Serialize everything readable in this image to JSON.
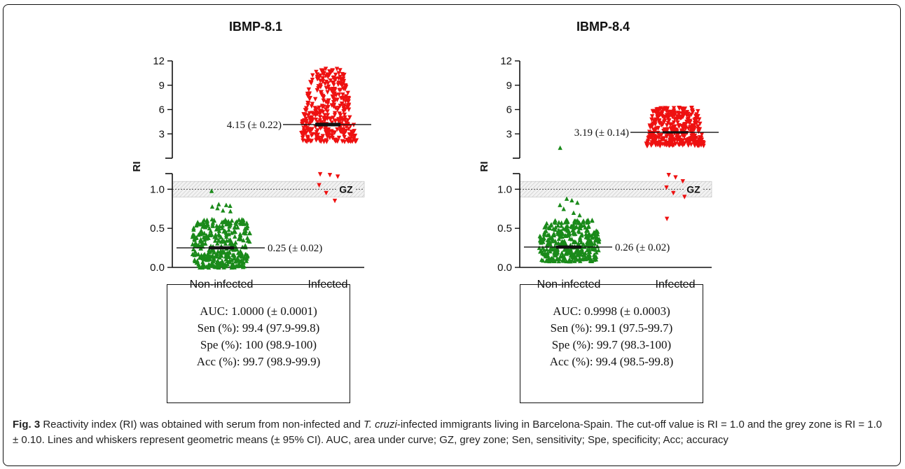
{
  "chart_data": [
    {
      "type": "scatter",
      "title": "IBMP-8.1",
      "ylabel": "RI",
      "categories": [
        "Non-infected",
        "Infected"
      ],
      "yticks_upper": [
        "3",
        "6",
        "9",
        "12"
      ],
      "yticks_lower": [
        "0.0",
        "0.5",
        "1.0"
      ],
      "ylim_lower": [
        0,
        1.2
      ],
      "ylim_upper": [
        0,
        12
      ],
      "cutoff": 1.0,
      "grey_zone": [
        0.9,
        1.1
      ],
      "grey_zone_label": "GZ",
      "series": [
        {
          "category": "Non-infected",
          "marker": "triangle-up",
          "color": "#1a8a1a",
          "ymin": 0.0,
          "ymax": 0.98,
          "mean": 0.25,
          "ci": 0.02,
          "mean_label": "0.25 (± 0.02)",
          "outliers": [
            0.98,
            0.81,
            0.8,
            0.79,
            0.78,
            0.76,
            0.73,
            0.72
          ]
        },
        {
          "category": "Infected",
          "marker": "triangle-down",
          "color": "#ee1111",
          "ymin": 2.0,
          "ymax": 11.0,
          "mean": 4.15,
          "ci": 0.22,
          "mean_label": "4.15 (± 0.22)",
          "outliers_lower": [
            1.19,
            1.18,
            1.16,
            1.05,
            0.95,
            0.85
          ]
        }
      ],
      "stats": [
        "AUC: 1.0000 (± 0.0001)",
        "Sen (%): 99.4 (97.9-99.8)",
        "Spe (%): 100 (98.9-100)",
        "Acc (%): 99.7 (98.9-99.9)"
      ]
    },
    {
      "type": "scatter",
      "title": "IBMP-8.4",
      "ylabel": "RI",
      "categories": [
        "Non-infected",
        "Infected"
      ],
      "yticks_upper": [
        "3",
        "6",
        "9",
        "12"
      ],
      "yticks_lower": [
        "0.0",
        "0.5",
        "1.0"
      ],
      "ylim_lower": [
        0,
        1.2
      ],
      "ylim_upper": [
        0,
        12
      ],
      "cutoff": 1.0,
      "grey_zone": [
        0.9,
        1.1
      ],
      "grey_zone_label": "GZ",
      "series": [
        {
          "category": "Non-infected",
          "marker": "triangle-up",
          "color": "#1a8a1a",
          "ymin": 0.08,
          "ymax": 1.3,
          "mean": 0.26,
          "ci": 0.02,
          "mean_label": "0.26 (± 0.02)",
          "outliers": [
            1.3,
            0.88,
            0.86,
            0.83,
            0.8,
            0.75,
            0.7,
            0.67
          ]
        },
        {
          "category": "Infected",
          "marker": "triangle-down",
          "color": "#ee1111",
          "ymin": 1.5,
          "ymax": 6.2,
          "mean": 3.19,
          "ci": 0.14,
          "mean_label": "3.19 (± 0.14)",
          "outliers_lower": [
            1.18,
            1.15,
            1.1,
            1.02,
            0.95,
            0.9,
            0.62
          ]
        }
      ],
      "stats": [
        "AUC: 0.9998 (± 0.0003)",
        "Sen (%): 99.1 (97.5-99.7)",
        "Spe (%): 99.7 (98.3-100)",
        "Acc (%): 99.4 (98.5-99.8)"
      ]
    }
  ],
  "caption": {
    "label": "Fig. 3",
    "text1": " Reactivity index (RI) was obtained with serum from non-infected and ",
    "italic": "T. cruzi",
    "text2": "-infected immigrants living in Barcelona-Spain. The cut-off value is RI = 1.0 and the grey zone is RI = 1.0 ± 0.10. Lines and whiskers represent geometric means (± 95% CI). AUC, area under curve; GZ, grey zone; Sen, sensitivity; Spe, specificity; Acc; accuracy"
  }
}
